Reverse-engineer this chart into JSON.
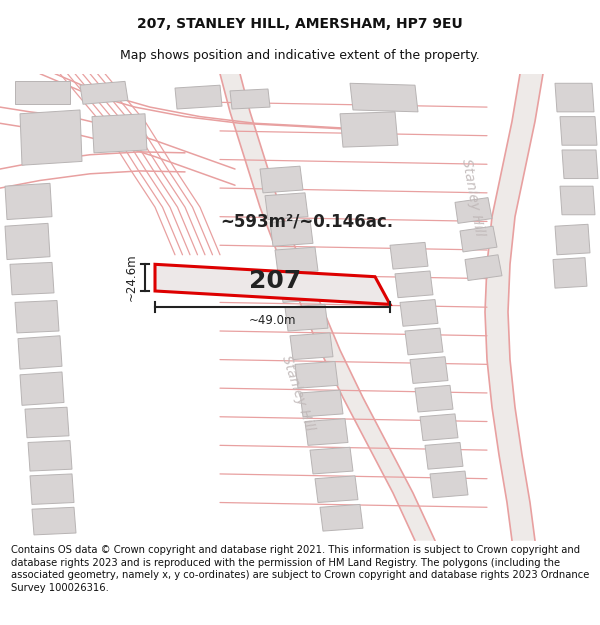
{
  "title": "207, STANLEY HILL, AMERSHAM, HP7 9EU",
  "subtitle": "Map shows position and indicative extent of the property.",
  "footer": "Contains OS data © Crown copyright and database right 2021. This information is subject to Crown copyright and database rights 2023 and is reproduced with the permission of HM Land Registry. The polygons (including the associated geometry, namely x, y co-ordinates) are subject to Crown copyright and database rights 2023 Ordnance Survey 100026316.",
  "area_label": "~593m²/~0.146ac.",
  "property_number": "207",
  "width_label": "~49.0m",
  "height_label": "~24.6m",
  "road_color": "#e8a0a0",
  "road_fill": "#f5eeee",
  "building_color": "#d8d4d4",
  "building_edge": "#b8b4b4",
  "highlight_color": "#dd0000",
  "highlight_fill": "#ede8e8",
  "dim_color": "#222222",
  "road_label_color": "#c0b8b8",
  "map_bg": "#f5f0f0",
  "title_fontsize": 10,
  "subtitle_fontsize": 9,
  "footer_fontsize": 7.2
}
